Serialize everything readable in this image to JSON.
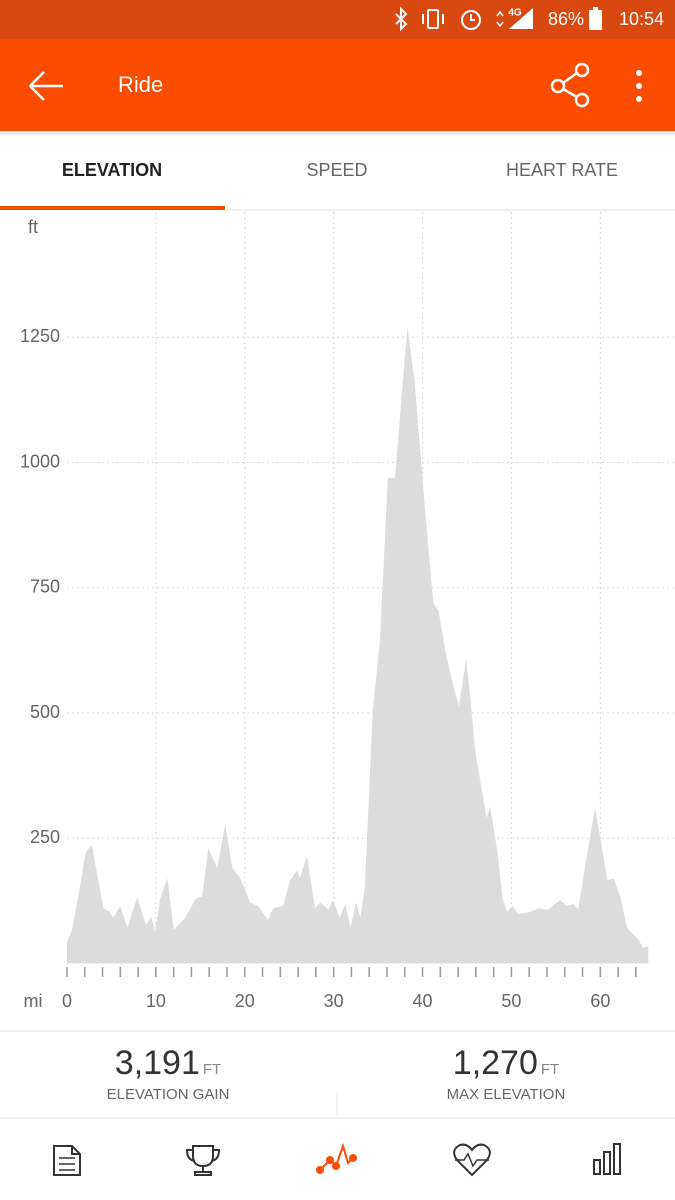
{
  "status_bar": {
    "network": "4G",
    "battery": "86%",
    "time": "10:54"
  },
  "app_bar": {
    "title": "Ride"
  },
  "tabs": [
    "ELEVATION",
    "SPEED",
    "HEART RATE"
  ],
  "chart_data": {
    "type": "area",
    "y_unit": "ft",
    "x_unit": "mi",
    "x": [
      0,
      0.56,
      1.5,
      2.1,
      2.8,
      4.1,
      4.8,
      5.2,
      6.0,
      6.8,
      7.9,
      8.9,
      9.5,
      9.9,
      10.5,
      11.3,
      12.0,
      13.3,
      14.5,
      15.2,
      15.9,
      16.9,
      17.8,
      18.6,
      19.5,
      20.6,
      21.5,
      22.6,
      23.2,
      24.3,
      25.1,
      25.9,
      26.2,
      27.0,
      27.9,
      28.5,
      29.4,
      29.9,
      30.7,
      31.3,
      31.9,
      32.5,
      33.0,
      33.5,
      34.4,
      35.2,
      36.1,
      36.9,
      37.6,
      38.3,
      39.1,
      40.3,
      41.2,
      41.8,
      42.6,
      43.3,
      44.1,
      44.9,
      45.4,
      45.9,
      46.5,
      47.2,
      47.6,
      48.4,
      49.0,
      49.5,
      50.1,
      50.8,
      52.1,
      53.0,
      54.1,
      54.9,
      55.5,
      56.2,
      57.0,
      57.5,
      58.4,
      59.4,
      60.0,
      60.8,
      61.5,
      62.3,
      63.0,
      64.3,
      64.8,
      65.4
    ],
    "values": [
      43,
      67,
      156,
      222,
      236,
      110,
      103,
      91,
      115,
      71,
      132,
      77,
      93,
      63,
      130,
      170,
      67,
      91,
      130,
      134,
      230,
      190,
      278,
      190,
      170,
      122,
      115,
      87,
      110,
      115,
      166,
      186,
      170,
      214,
      110,
      122,
      107,
      126,
      91,
      119,
      71,
      122,
      91,
      150,
      505,
      644,
      969,
      969,
      1122,
      1270,
      1162,
      903,
      720,
      704,
      620,
      565,
      513,
      608,
      525,
      425,
      365,
      290,
      313,
      226,
      130,
      103,
      115,
      99,
      103,
      110,
      107,
      119,
      126,
      115,
      119,
      107,
      206,
      310,
      250,
      166,
      170,
      130,
      71,
      47,
      31,
      35
    ],
    "color": "#dcdcdc",
    "xlim": [
      0,
      68.4
    ],
    "ylim": [
      0,
      1500
    ],
    "xticks": [
      0,
      10,
      20,
      30,
      40,
      50,
      60
    ],
    "xminorticks": [
      0,
      2,
      4,
      6,
      8,
      10,
      12,
      14,
      16,
      18,
      20,
      22,
      24,
      26,
      28,
      30,
      32,
      34,
      36,
      38,
      40,
      42,
      44,
      46,
      48,
      50,
      52,
      54,
      56,
      58,
      60,
      62,
      64
    ],
    "yticks": [
      250,
      500,
      750,
      1000,
      1250
    ],
    "grid": true
  },
  "stats": [
    {
      "value": "3,191",
      "unit": "FT",
      "label": "ELEVATION GAIN"
    },
    {
      "value": "1,270",
      "unit": "FT",
      "label": "MAX ELEVATION"
    }
  ]
}
